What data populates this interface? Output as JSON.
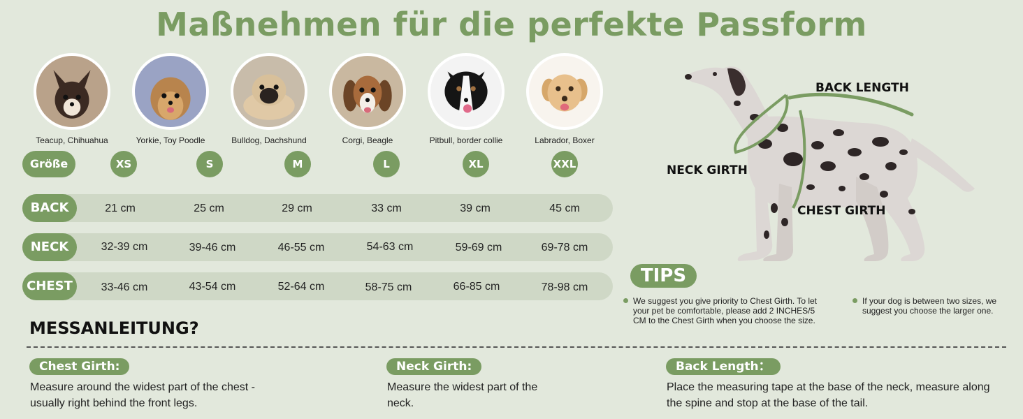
{
  "title": "Maßnehmen für die perfekte Passform",
  "breeds": [
    {
      "name": "Teacup, Chihuahua"
    },
    {
      "name": "Yorkie, Toy Poodle"
    },
    {
      "name": "Bulldog, Dachshund"
    },
    {
      "name": "Corgi, Beagle"
    },
    {
      "name": "Pitbull, border collie"
    },
    {
      "name": "Labrador, Boxer"
    }
  ],
  "size_label": "Größe",
  "sizes": [
    "XS",
    "S",
    "M",
    "L",
    "XL",
    "XXL"
  ],
  "rows": [
    {
      "label": "BACK",
      "values": [
        "21 cm",
        "25 cm",
        "29 cm",
        "33 cm",
        "39 cm",
        "45 cm"
      ]
    },
    {
      "label": "NECK",
      "values": [
        "32-39 cm",
        "39-46 cm",
        "46-55 cm",
        "54-63 cm",
        "59-69 cm",
        "69-78 cm"
      ]
    },
    {
      "label": "CHEST",
      "values": [
        "33-46 cm",
        "43-54 cm",
        "52-64 cm",
        "58-75 cm",
        "66-85 cm",
        "78-98 cm"
      ]
    }
  ],
  "diagram": {
    "back_length": "BACK LENGTH",
    "neck_girth": "NECK GIRTH",
    "chest_girth": "CHEST GIRTH"
  },
  "tips": {
    "label": "TIPS",
    "items": [
      "We suggest you give priority to Chest Girth. To let your pet be comfortable, please add 2 INCHES/5 CM to the Chest Girth when you choose the size.",
      "If your dog is between two sizes, we suggest you choose the larger one."
    ]
  },
  "instructions_heading": "MESSANLEITUNG?",
  "instructions": [
    {
      "tag": "Chest Girth:",
      "text": "Measure around the widest part of the chest - usually right behind the front legs."
    },
    {
      "tag": "Neck Girth:",
      "text": "Measure the widest part of the neck."
    },
    {
      "tag": "Back Length：",
      "text": "Place the measuring tape at the base of the neck, measure along the spine and stop at the base of the tail."
    }
  ],
  "colors": {
    "accent": "#7a9c62",
    "background": "#e2e8dc",
    "row_background": "#cfd8c6"
  }
}
